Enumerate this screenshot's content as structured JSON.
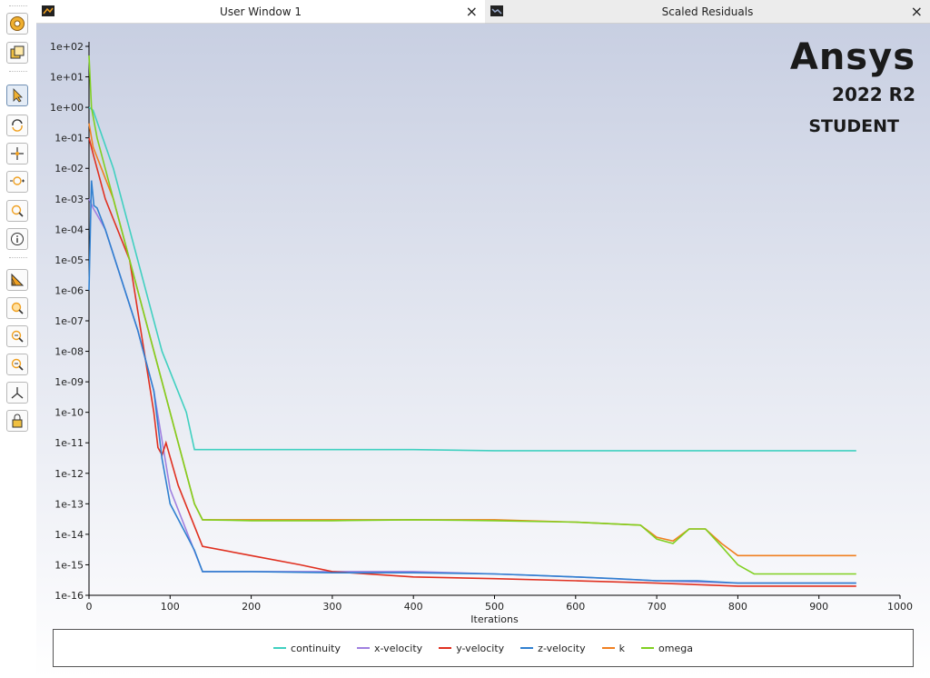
{
  "tabs": [
    {
      "title": "User Window 1",
      "close": "×",
      "active": true
    },
    {
      "title": "Scaled Residuals",
      "close": "×",
      "active": false
    }
  ],
  "toolbar": {
    "icons": [
      "ansys-logo-icon",
      "window-layout-icon",
      "select-pointer-icon",
      "rotate-icon",
      "pan-icon",
      "zoom-in-out-icon",
      "zoom-fit-icon",
      "info-icon",
      "colormap-icon",
      "zoom-box-icon",
      "zoom-in-icon",
      "zoom-out-icon",
      "axes-icon",
      "lock-view-icon"
    ]
  },
  "logo": {
    "brand": "Ansys",
    "version": "2022 R2",
    "edition": "STUDENT"
  },
  "colors": {
    "continuity": "#40d0c0",
    "x-velocity": "#a080e0",
    "y-velocity": "#e03020",
    "z-velocity": "#3080d0",
    "k": "#f08020",
    "omega": "#80d020"
  },
  "chart_data": {
    "type": "line",
    "title": "",
    "xlabel": "Iterations",
    "ylabel": "",
    "xlim": [
      0,
      1000
    ],
    "ylim": [
      1e-16,
      100.0
    ],
    "yscale": "log",
    "xticks": [
      0,
      100,
      200,
      300,
      400,
      500,
      600,
      700,
      800,
      900,
      1000
    ],
    "yticks": [
      "1e+02",
      "1e+01",
      "1e+00",
      "1e-01",
      "1e-02",
      "1e-03",
      "1e-04",
      "1e-05",
      "1e-06",
      "1e-07",
      "1e-08",
      "1e-09",
      "1e-10",
      "1e-11",
      "1e-12",
      "1e-13",
      "1e-14",
      "1e-15",
      "1e-16"
    ],
    "grid": false,
    "legend": "bottom",
    "series": [
      {
        "name": "continuity",
        "x": [
          0,
          5,
          30,
          60,
          90,
          120,
          130,
          140,
          200,
          300,
          400,
          500,
          600,
          700,
          800,
          946
        ],
        "y": [
          1.0,
          0.8,
          0.01,
          1e-05,
          1e-08,
          1e-10,
          6e-12,
          6e-12,
          6e-12,
          6e-12,
          6e-12,
          5.5e-12,
          5.5e-12,
          5.5e-12,
          5.5e-12,
          5.5e-12
        ]
      },
      {
        "name": "x-velocity",
        "x": [
          0,
          5,
          10,
          20,
          60,
          80,
          100,
          140,
          200,
          300,
          400,
          500,
          600,
          700,
          800,
          946
        ],
        "y": [
          0.001,
          0.0005,
          0.0003,
          0.0001,
          5e-08,
          5e-10,
          3e-13,
          6e-16,
          6e-16,
          6e-16,
          6e-16,
          5e-16,
          4e-16,
          3e-16,
          2.5e-16,
          2.5e-16
        ]
      },
      {
        "name": "y-velocity",
        "x": [
          0,
          5,
          20,
          50,
          80,
          85,
          90,
          95,
          110,
          140,
          200,
          260,
          300,
          400,
          500,
          600,
          700,
          800,
          946
        ],
        "y": [
          0.1,
          0.03,
          0.001,
          1e-05,
          1e-10,
          7e-12,
          4e-12,
          1e-11,
          4e-13,
          4e-15,
          2e-15,
          1e-15,
          6e-16,
          4e-16,
          3.5e-16,
          3e-16,
          2.5e-16,
          2e-16,
          2e-16
        ]
      },
      {
        "name": "z-velocity",
        "x": [
          0,
          3,
          6,
          10,
          20,
          60,
          80,
          90,
          100,
          130,
          140,
          200,
          300,
          400,
          500,
          550,
          600,
          650,
          700,
          750,
          800,
          946
        ],
        "y": [
          1e-06,
          0.004,
          0.0006,
          0.0005,
          0.0001,
          5e-08,
          5e-10,
          3e-12,
          1e-13,
          3e-15,
          6e-16,
          6e-16,
          5.5e-16,
          5.5e-16,
          5e-16,
          4.5e-16,
          4e-16,
          3.5e-16,
          3e-16,
          3e-16,
          2.5e-16,
          2.5e-16
        ]
      },
      {
        "name": "k",
        "x": [
          0,
          5,
          30,
          60,
          90,
          110,
          130,
          140,
          200,
          300,
          400,
          500,
          600,
          680,
          700,
          720,
          740,
          760,
          780,
          800,
          946
        ],
        "y": [
          0.3,
          0.05,
          0.001,
          1e-06,
          1e-09,
          1e-11,
          1e-13,
          3e-14,
          3e-14,
          3e-14,
          3e-14,
          3e-14,
          2.5e-14,
          2e-14,
          8e-15,
          6e-15,
          1.5e-14,
          1.5e-14,
          5e-15,
          2e-15,
          2e-15
        ]
      },
      {
        "name": "omega",
        "x": [
          0,
          3,
          10,
          30,
          60,
          90,
          110,
          130,
          140,
          200,
          300,
          400,
          500,
          600,
          680,
          700,
          720,
          740,
          760,
          780,
          800,
          820,
          946
        ],
        "y": [
          50,
          1.0,
          0.1,
          0.001,
          1e-06,
          1e-09,
          1e-11,
          1e-13,
          3e-14,
          2.8e-14,
          2.8e-14,
          3e-14,
          2.8e-14,
          2.5e-14,
          2e-14,
          7e-15,
          5e-15,
          1.5e-14,
          1.5e-14,
          4e-15,
          1e-15,
          5e-16,
          5e-16
        ]
      }
    ]
  }
}
